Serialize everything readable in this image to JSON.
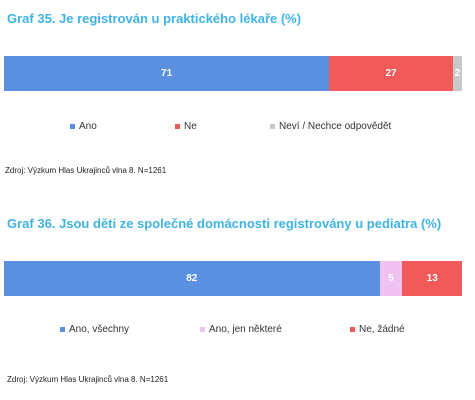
{
  "chart_data": [
    {
      "type": "bar",
      "orientation": "horizontal-stacked",
      "title": "Graf 35. Je registrován u praktického lékaře (%)",
      "series": [
        {
          "name": "Ano",
          "value": 71,
          "color": "#5b8fe0"
        },
        {
          "name": "Ne",
          "value": 27,
          "color": "#f05a5a"
        },
        {
          "name": "Neví / Nechce odpovědět",
          "value": 2,
          "color": "#c8c8c8"
        }
      ],
      "xlim": [
        0,
        100
      ],
      "legend_position": "bottom",
      "source": "Zdroj: Výzkum Hlas Ukrajinců vlna 8. N=1261"
    },
    {
      "type": "bar",
      "orientation": "horizontal-stacked",
      "title": "Graf 36. Jsou děti ze společné domácnosti registrovány u pediatra (%)",
      "series": [
        {
          "name": "Ano, všechny",
          "value": 82,
          "color": "#5b8fe0"
        },
        {
          "name": "Ano, jen některé",
          "value": 5,
          "color": "#efc2f2"
        },
        {
          "name": "Ne, žádné",
          "value": 13,
          "color": "#f05a5a"
        }
      ],
      "xlim": [
        0,
        100
      ],
      "legend_position": "bottom",
      "source": "Zdroj: Výzkum Hlas Ukrajinců vlna 8. N=1261"
    }
  ]
}
